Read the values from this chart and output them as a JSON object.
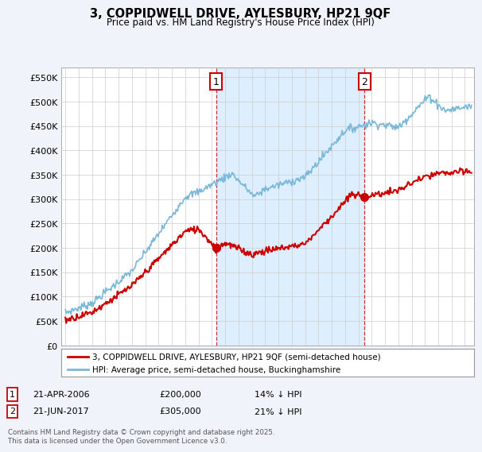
{
  "title": "3, COPPIDWELL DRIVE, AYLESBURY, HP21 9QF",
  "subtitle": "Price paid vs. HM Land Registry's House Price Index (HPI)",
  "ylabel_ticks": [
    "£0",
    "£50K",
    "£100K",
    "£150K",
    "£200K",
    "£250K",
    "£300K",
    "£350K",
    "£400K",
    "£450K",
    "£500K",
    "£550K"
  ],
  "ytick_vals": [
    0,
    50000,
    100000,
    150000,
    200000,
    250000,
    300000,
    350000,
    400000,
    450000,
    500000,
    550000
  ],
  "ylim": [
    0,
    570000
  ],
  "xlim_start": 1994.7,
  "xlim_end": 2025.7,
  "hpi_color": "#7ab8d9",
  "price_color": "#cc0000",
  "marker1_x": 2006.31,
  "marker1_y": 200000,
  "marker2_x": 2017.47,
  "marker2_y": 305000,
  "vline1_x": 2006.31,
  "vline2_x": 2017.47,
  "shade_color": "#ddeeff",
  "legend_line1": "3, COPPIDWELL DRIVE, AYLESBURY, HP21 9QF (semi-detached house)",
  "legend_line2": "HPI: Average price, semi-detached house, Buckinghamshire",
  "footer": "Contains HM Land Registry data © Crown copyright and database right 2025.\nThis data is licensed under the Open Government Licence v3.0.",
  "background_color": "#f0f4fa",
  "plot_bg_color": "#ffffff",
  "grid_color": "#cccccc"
}
